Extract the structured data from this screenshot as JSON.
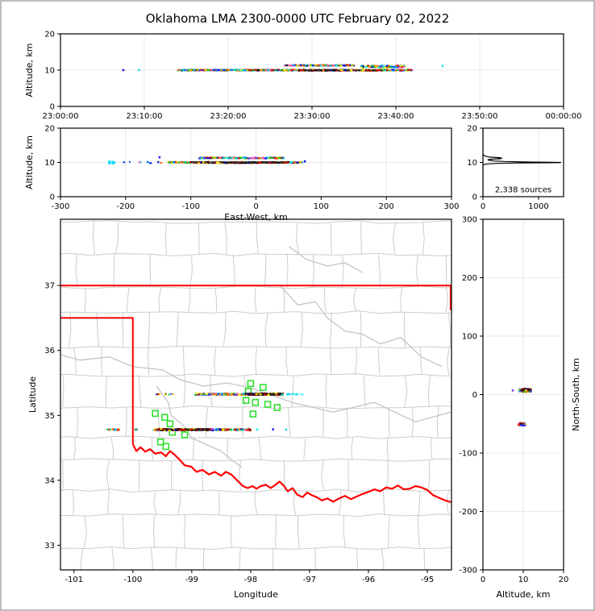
{
  "title": "Oklahoma LMA 2300-0000 UTC February 02, 2022",
  "colors": {
    "background": "#ffffff",
    "frame": "#000000",
    "grid": "#e8e8e8",
    "county": "#cdcdcd",
    "river": "#c4c4c4",
    "state_border": "#ff0000",
    "station": "#2ee02e",
    "histogram_line": "#000000"
  },
  "palettes": {
    "mix": [
      "#0000ff",
      "#2244ee",
      "#0088ff",
      "#00ccff",
      "#00eedd",
      "#00bb44",
      "#22cc22",
      "#bbcc00",
      "#ffee00",
      "#ffaa00",
      "#ff6600",
      "#ff2200",
      "#cc0000",
      "#881111",
      "#111111",
      "#ff55cc"
    ],
    "dark": [
      "#111111",
      "#222222",
      "#440000",
      "#880000",
      "#cc1100",
      "#001188",
      "#333333",
      "#ffee00"
    ],
    "cyan": [
      "#00e5ee",
      "#00ccff",
      "#55eeff"
    ],
    "green": [
      "#007766",
      "#00aa33"
    ],
    "blue": [
      "#0011ee",
      "#2233ff"
    ],
    "hot": [
      "#cc0000",
      "#ff2200",
      "#111111",
      "#111111",
      "#0000cc",
      "#ffcc00"
    ]
  },
  "chart_data": [
    {
      "id": "time_height",
      "type": "scatter",
      "title": "",
      "xlabel": "",
      "ylabel": "Altitude, km",
      "xlim": [
        0,
        3600
      ],
      "ylim": [
        0,
        20
      ],
      "xtick_values": [
        0,
        600,
        1200,
        1800,
        2400,
        3000,
        3600
      ],
      "xtick_labels": [
        "23:00:00",
        "23:10:00",
        "23:20:00",
        "23:30:00",
        "23:40:00",
        "23:50:00",
        "00:00:00"
      ],
      "yticks": [
        0,
        10,
        20
      ],
      "grid": true,
      "segments": [
        {
          "x0": 840,
          "x1": 2520,
          "y": 10.0,
          "dy": 0.15,
          "n": 520,
          "pal": "mix"
        },
        {
          "x0": 870,
          "x1": 1560,
          "y": 10.02,
          "dy": 0.09,
          "n": 260,
          "pal": "mix"
        },
        {
          "x0": 1600,
          "x1": 2100,
          "y": 11.3,
          "dy": 0.14,
          "n": 150,
          "pal": "mix"
        },
        {
          "x0": 2150,
          "x1": 2460,
          "y": 11.0,
          "dy": 0.28,
          "n": 130,
          "pal": "mix"
        },
        {
          "x0": 1700,
          "x1": 2300,
          "y": 9.95,
          "dy": 0.14,
          "n": 150,
          "pal": "dark"
        }
      ],
      "singles": [
        [
          450,
          10.0,
          "#0000ff"
        ],
        [
          562,
          10.05,
          "#00dddd"
        ],
        [
          2735,
          11.2,
          "#00e5ee"
        ]
      ]
    },
    {
      "id": "ew_height",
      "type": "scatter",
      "xlabel": "East-West, km",
      "ylabel": "Altitude, km",
      "xlim": [
        -300,
        300
      ],
      "ylim": [
        0,
        20
      ],
      "xtick_values": [
        -300,
        -200,
        -100,
        0,
        100,
        200,
        300
      ],
      "xtick_labels": [
        "-300",
        "-200",
        "-100",
        "0",
        "100",
        "200",
        "300"
      ],
      "yticks": [
        0,
        10,
        20
      ],
      "grid": true,
      "segments": [
        {
          "x0": -135,
          "x1": 70,
          "y": 10.0,
          "dy": 0.16,
          "n": 420,
          "pal": "mix"
        },
        {
          "x0": -95,
          "x1": 48,
          "y": 9.95,
          "dy": 0.14,
          "n": 260,
          "pal": "dark"
        },
        {
          "x0": -88,
          "x1": 45,
          "y": 11.3,
          "dy": 0.16,
          "n": 170,
          "pal": "mix"
        },
        {
          "x0": -226,
          "x1": -218,
          "y": 10.0,
          "dy": 0.45,
          "n": 12,
          "pal": "cyan"
        },
        {
          "x0": -210,
          "x1": -140,
          "y": 10.0,
          "dy": 0.22,
          "n": 9,
          "pal": "mix"
        }
      ],
      "singles": [
        [
          -148,
          11.5,
          "#0000ff"
        ],
        [
          -150,
          10.05,
          "#0044ff"
        ],
        [
          75,
          10.3,
          "#0000ff"
        ]
      ]
    },
    {
      "id": "alt_histogram",
      "type": "line",
      "annotation": "2,338 sources",
      "xlim": [
        0,
        1450
      ],
      "ylim": [
        0,
        20
      ],
      "xtick_values": [
        0,
        1000
      ],
      "xtick_labels": [
        "0",
        "1000"
      ],
      "yticks": [
        0,
        10,
        20
      ],
      "grid": true,
      "points": [
        [
          0,
          20
        ],
        [
          0,
          12.4
        ],
        [
          12,
          12.1
        ],
        [
          50,
          11.8
        ],
        [
          120,
          11.55
        ],
        [
          300,
          11.4
        ],
        [
          340,
          11.28
        ],
        [
          270,
          11.18
        ],
        [
          320,
          11.08
        ],
        [
          150,
          10.95
        ],
        [
          90,
          10.8
        ],
        [
          110,
          10.6
        ],
        [
          200,
          10.42
        ],
        [
          380,
          10.28
        ],
        [
          800,
          10.12
        ],
        [
          1400,
          10.0
        ],
        [
          1380,
          9.93
        ],
        [
          700,
          9.85
        ],
        [
          250,
          9.72
        ],
        [
          90,
          9.58
        ],
        [
          25,
          9.42
        ],
        [
          0,
          9.2
        ],
        [
          0,
          0
        ]
      ]
    },
    {
      "id": "map",
      "type": "scatter",
      "xlabel": "Longitude",
      "ylabel": "Latitude",
      "xlim": [
        -101.23,
        -94.59
      ],
      "ylim": [
        32.62,
        38.02
      ],
      "xtick_values": [
        -101,
        -100,
        -99,
        -98,
        -97,
        -96,
        -95
      ],
      "xtick_labels": [
        "-101",
        "-100",
        "-99",
        "-98",
        "-97",
        "-96",
        "-95"
      ],
      "yticks": [
        33,
        34,
        35,
        36,
        37
      ],
      "grid": false,
      "county_grid": {
        "seed": 5,
        "lat_step": 0.42,
        "lon_step": 0.55
      },
      "rivers": [
        [
          [
            -97.35,
            37.6
          ],
          [
            -97.05,
            37.4
          ],
          [
            -96.7,
            37.3
          ],
          [
            -96.4,
            37.35
          ],
          [
            -96.1,
            37.2
          ]
        ],
        [
          [
            -97.5,
            37.0
          ],
          [
            -97.2,
            36.7
          ],
          [
            -96.9,
            36.75
          ],
          [
            -96.7,
            36.5
          ],
          [
            -96.4,
            36.3
          ],
          [
            -96.1,
            36.25
          ],
          [
            -95.8,
            36.1
          ],
          [
            -95.45,
            36.2
          ],
          [
            -95.1,
            35.9
          ],
          [
            -94.75,
            35.75
          ]
        ],
        [
          [
            -101.3,
            35.95
          ],
          [
            -100.9,
            35.85
          ],
          [
            -100.4,
            35.9
          ],
          [
            -100.0,
            35.75
          ],
          [
            -99.5,
            35.7
          ],
          [
            -99.2,
            35.55
          ],
          [
            -98.8,
            35.45
          ],
          [
            -98.4,
            35.5
          ],
          [
            -98.0,
            35.42
          ],
          [
            -97.6,
            35.3
          ],
          [
            -97.3,
            35.2
          ],
          [
            -96.6,
            35.05
          ],
          [
            -95.9,
            35.2
          ],
          [
            -95.2,
            34.9
          ],
          [
            -94.6,
            35.05
          ]
        ],
        [
          [
            -99.6,
            35.45
          ],
          [
            -99.4,
            35.2
          ],
          [
            -99.35,
            35.0
          ],
          [
            -99.15,
            34.85
          ],
          [
            -99.0,
            34.65
          ],
          [
            -98.75,
            34.55
          ],
          [
            -98.5,
            34.45
          ],
          [
            -98.3,
            34.3
          ],
          [
            -98.15,
            34.2
          ]
        ]
      ],
      "state_lines": [
        [
          [
            -101.4,
            37.0
          ],
          [
            -94.5,
            37.0
          ]
        ],
        [
          [
            -101.4,
            36.5
          ],
          [
            -100.0,
            36.5
          ],
          [
            -100.0,
            34.555
          ]
        ],
        [
          [
            -94.605,
            37.0
          ],
          [
            -94.605,
            36.62
          ]
        ],
        [
          [
            -100.0,
            34.555
          ],
          [
            -99.94,
            34.45
          ],
          [
            -99.87,
            34.51
          ],
          [
            -99.79,
            34.44
          ],
          [
            -99.71,
            34.48
          ],
          [
            -99.62,
            34.41
          ],
          [
            -99.52,
            34.43
          ],
          [
            -99.44,
            34.37
          ],
          [
            -99.37,
            34.45
          ],
          [
            -99.3,
            34.4
          ],
          [
            -99.22,
            34.33
          ],
          [
            -99.12,
            34.23
          ],
          [
            -99.01,
            34.21
          ],
          [
            -98.92,
            34.13
          ],
          [
            -98.82,
            34.16
          ],
          [
            -98.71,
            34.09
          ],
          [
            -98.61,
            34.13
          ],
          [
            -98.5,
            34.07
          ],
          [
            -98.42,
            34.13
          ],
          [
            -98.33,
            34.09
          ],
          [
            -98.23,
            34.0
          ],
          [
            -98.13,
            33.91
          ],
          [
            -98.05,
            33.88
          ],
          [
            -97.97,
            33.91
          ],
          [
            -97.9,
            33.87
          ],
          [
            -97.83,
            33.91
          ],
          [
            -97.74,
            33.93
          ],
          [
            -97.66,
            33.88
          ],
          [
            -97.58,
            33.93
          ],
          [
            -97.51,
            33.98
          ],
          [
            -97.44,
            33.92
          ],
          [
            -97.37,
            33.83
          ],
          [
            -97.29,
            33.88
          ],
          [
            -97.21,
            33.78
          ],
          [
            -97.12,
            33.74
          ],
          [
            -97.04,
            33.81
          ],
          [
            -96.96,
            33.77
          ],
          [
            -96.88,
            33.74
          ],
          [
            -96.79,
            33.69
          ],
          [
            -96.7,
            33.72
          ],
          [
            -96.6,
            33.67
          ],
          [
            -96.5,
            33.72
          ],
          [
            -96.4,
            33.76
          ],
          [
            -96.3,
            33.71
          ],
          [
            -96.2,
            33.75
          ],
          [
            -96.1,
            33.79
          ],
          [
            -96.0,
            33.82
          ],
          [
            -95.9,
            33.86
          ],
          [
            -95.8,
            33.83
          ],
          [
            -95.7,
            33.89
          ],
          [
            -95.6,
            33.87
          ],
          [
            -95.5,
            33.92
          ],
          [
            -95.4,
            33.86
          ],
          [
            -95.3,
            33.87
          ],
          [
            -95.2,
            33.91
          ],
          [
            -95.1,
            33.89
          ],
          [
            -95.0,
            33.85
          ],
          [
            -94.9,
            33.77
          ],
          [
            -94.8,
            33.73
          ],
          [
            -94.7,
            33.69
          ],
          [
            -94.58,
            33.66
          ]
        ]
      ],
      "stations": [
        [
          -98.0,
          35.49
        ],
        [
          -97.79,
          35.43
        ],
        [
          -98.04,
          35.37
        ],
        [
          -98.08,
          35.23
        ],
        [
          -97.92,
          35.2
        ],
        [
          -97.71,
          35.17
        ],
        [
          -97.96,
          35.02
        ],
        [
          -97.55,
          35.12
        ],
        [
          -99.62,
          35.03
        ],
        [
          -99.46,
          34.97
        ],
        [
          -99.37,
          34.87
        ],
        [
          -99.33,
          34.74
        ],
        [
          -99.12,
          34.7
        ],
        [
          -99.53,
          34.59
        ],
        [
          -99.44,
          34.52
        ]
      ],
      "segments": [
        {
          "x0": -98.95,
          "x1": -97.45,
          "y": 35.325,
          "dy": 0.013,
          "n": 190,
          "pal": "mix"
        },
        {
          "x0": -98.1,
          "x1": -97.5,
          "y": 35.325,
          "dy": 0.013,
          "n": 190,
          "pal": "dark"
        },
        {
          "x0": -99.62,
          "x1": -99.3,
          "y": 35.325,
          "dy": 0.008,
          "n": 9,
          "pal": "mix"
        },
        {
          "x0": -97.45,
          "x1": -97.12,
          "y": 35.325,
          "dy": 0.006,
          "n": 10,
          "pal": "cyan"
        },
        {
          "x0": -99.66,
          "x1": -98.0,
          "y": 34.78,
          "dy": 0.013,
          "n": 240,
          "pal": "mix"
        },
        {
          "x0": -99.6,
          "x1": -98.72,
          "y": 34.78,
          "dy": 0.013,
          "n": 200,
          "pal": "dark"
        },
        {
          "x0": -100.45,
          "x1": -100.22,
          "y": 34.78,
          "dy": 0.01,
          "n": 14,
          "pal": "mix"
        },
        {
          "x0": -100.0,
          "x1": -99.93,
          "y": 34.78,
          "dy": 0.005,
          "n": 3,
          "pal": "green"
        }
      ],
      "singles": [
        [
          -97.89,
          34.78,
          "#00e5ee"
        ],
        [
          -97.62,
          34.785,
          "#0000ff"
        ],
        [
          -97.4,
          34.78,
          "#00ccff"
        ]
      ]
    },
    {
      "id": "ns_height",
      "type": "scatter",
      "xlabel": "Altitude, km",
      "ylabel": "North-South, km",
      "xlim": [
        0,
        20
      ],
      "ylim": [
        -300,
        300
      ],
      "xtick_values": [
        0,
        10,
        20
      ],
      "xtick_labels": [
        "0",
        "10",
        "20"
      ],
      "yticks": [
        -300,
        -200,
        -100,
        0,
        100,
        200,
        300
      ],
      "grid": true,
      "segments": [
        {
          "x0": 9.0,
          "x1": 11.8,
          "y": 7.0,
          "dy": 3.0,
          "n": 60,
          "pal": "mix"
        },
        {
          "x0": 9.5,
          "x1": 11.5,
          "y": 8.5,
          "dy": 1.6,
          "n": 25,
          "pal": "dark"
        },
        {
          "x0": 8.8,
          "x1": 10.4,
          "y": -50.5,
          "dy": 2.4,
          "n": 40,
          "pal": "hot"
        },
        {
          "x0": 9.3,
          "x1": 10.5,
          "y": -52.8,
          "dy": 0.5,
          "n": 8,
          "pal": "blue"
        }
      ],
      "singles": [
        [
          7.4,
          7,
          "#7733ee"
        ]
      ]
    }
  ]
}
